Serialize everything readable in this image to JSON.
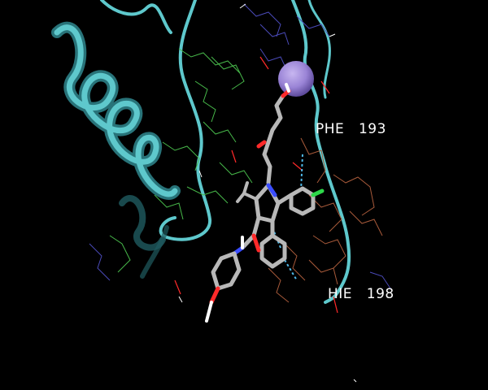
{
  "scene": {
    "background": "#000000",
    "colors": {
      "ribbon": "#5ec8cc",
      "ribbon_dark": "#2c7f86",
      "ligand_carbon": "#b8b8b8",
      "nitrogen": "#3a4dff",
      "oxygen": "#ff2a2a",
      "hydrogen": "#ffffff",
      "chlorine": "#2ed84a",
      "ion": "#9a84d6",
      "interaction": "#4fb8e8",
      "green_residues": "#47b84a",
      "brown_residues": "#a85a3a",
      "blue_residues": "#4a4ab8"
    },
    "labels": [
      {
        "id": "phe",
        "text": "PHE   193"
      },
      {
        "id": "hie",
        "text": "HIE   198"
      }
    ]
  }
}
